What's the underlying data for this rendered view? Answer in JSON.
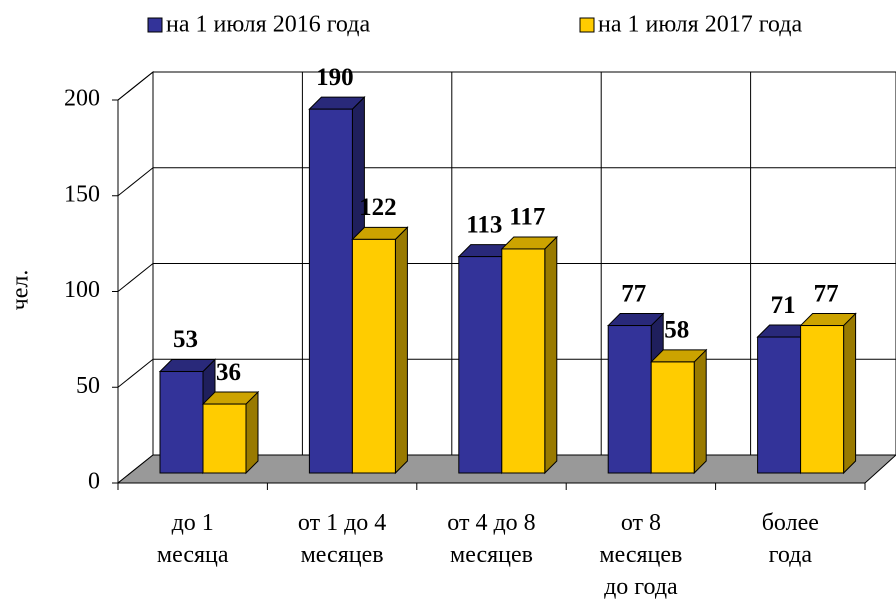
{
  "chart_data": {
    "type": "bar3d",
    "y_label": "чел.",
    "categories": [
      "до 1\nмесяца",
      "от 1 до 4\nмесяцев",
      "от 4 до 8\nмесяцев",
      "от 8\nмесяцев\nдо года",
      "более\nгода"
    ],
    "series": [
      {
        "name": "на 1 июля 2016 года",
        "color": "#333399",
        "values": [
          53,
          190,
          113,
          77,
          71
        ]
      },
      {
        "name": "на 1 июля 2017 года",
        "color": "#ffcc00",
        "values": [
          36,
          122,
          117,
          58,
          77
        ]
      }
    ],
    "ylim": [
      0,
      200
    ],
    "yticks": [
      0,
      50,
      100,
      150,
      200
    ],
    "grid": true,
    "legend": "top"
  }
}
